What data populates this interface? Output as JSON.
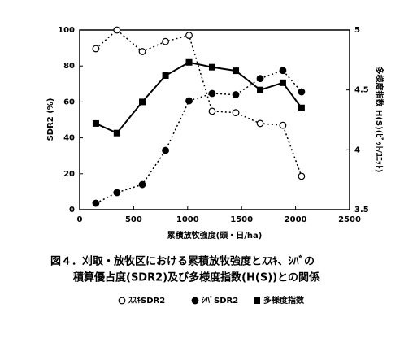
{
  "chart_data": {
    "type": "line",
    "xlabel": "累積放牧強度(頭・日/ha)",
    "ylabel": "SDR2 (%)",
    "y2label": "多様度指数 H(S)(ﾋﾞｯﾄ/ﾕﾆｯﾄ)",
    "caption": [
      "図４．刈取・放牧区における累積放牧強度とｽｽｷ、ｼﾊﾞの",
      "積算優占度(SDR2)及び多様度指数(H(S))との関係"
    ],
    "x": [
      150,
      345,
      580,
      795,
      1013,
      1227,
      1446,
      1672,
      1882,
      2055
    ],
    "xlim": [
      0,
      2500
    ],
    "xticks": [
      0,
      500,
      1000,
      1500,
      2000,
      2500
    ],
    "ylim": [
      0,
      100
    ],
    "yticks": [
      0,
      20,
      40,
      60,
      80,
      100
    ],
    "y2lim": [
      3.5,
      5
    ],
    "y2ticks": [
      3.5,
      4,
      4.5,
      5
    ],
    "series": [
      {
        "name": "ｽｽｷSDR2",
        "color": "#000",
        "marker": "open-circle",
        "line": "dotted",
        "values": [
          89.6,
          100,
          88,
          93.6,
          97,
          54.8,
          54,
          48,
          47,
          18.6
        ]
      },
      {
        "name": "ｼﾊﾞSDR2",
        "color": "#000",
        "marker": "filled-circle",
        "line": "dotted",
        "values": [
          3.6,
          9.5,
          14,
          33,
          60.6,
          64.7,
          64,
          73,
          77.5,
          65.6
        ]
      },
      {
        "name": "多様度指数",
        "color": "#000",
        "marker": "square",
        "line": "solid",
        "axis": "y2",
        "values": [
          4.22,
          4.14,
          4.4,
          4.62,
          4.73,
          4.69,
          4.66,
          4.5,
          4.56,
          4.35
        ]
      }
    ]
  }
}
